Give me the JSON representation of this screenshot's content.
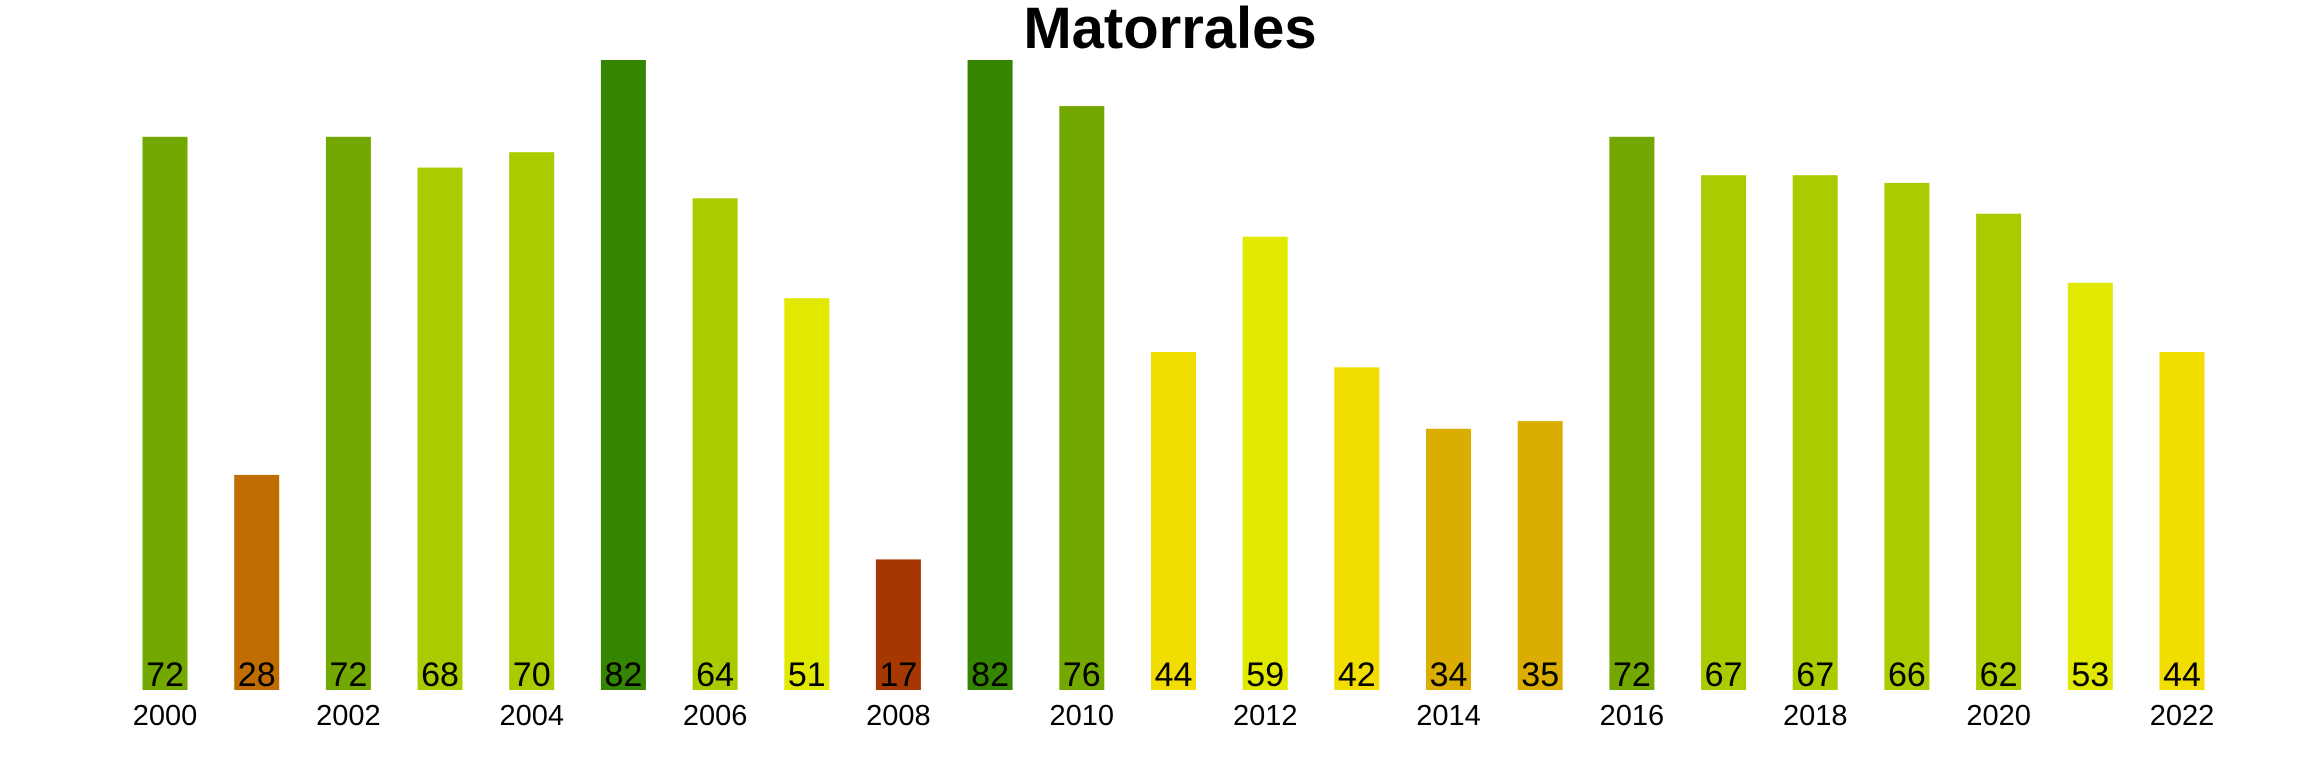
{
  "chart_data": {
    "type": "bar",
    "title": "Matorrales",
    "xlabel": "",
    "ylabel": "",
    "categories": [
      "2000",
      "2001",
      "2002",
      "2003",
      "2004",
      "2005",
      "2006",
      "2007",
      "2008",
      "2009",
      "2010",
      "2011",
      "2012",
      "2013",
      "2014",
      "2015",
      "2016",
      "2017",
      "2018",
      "2019",
      "2020",
      "2021",
      "2022"
    ],
    "values": [
      72,
      28,
      72,
      68,
      70,
      82,
      64,
      51,
      17,
      82,
      76,
      44,
      59,
      42,
      34,
      35,
      72,
      67,
      67,
      66,
      62,
      53,
      44
    ],
    "data_labels": [
      "72",
      "28",
      "72",
      "68",
      "70",
      "82",
      "64",
      "51",
      "17",
      "82",
      "76",
      "44",
      "59",
      "42",
      "34",
      "35",
      "72",
      "67",
      "67",
      "66",
      "62",
      "53",
      "44"
    ],
    "tick_labels": [
      "2000",
      "2002",
      "2004",
      "2006",
      "2008",
      "2010",
      "2012",
      "2014",
      "2016",
      "2018",
      "2020",
      "2022"
    ],
    "colors": [
      "#72a800",
      "#bf6d00",
      "#72a800",
      "#a9cc00",
      "#a9cc00",
      "#358500",
      "#a9cc00",
      "#e1e900",
      "#a53700",
      "#358500",
      "#72a800",
      "#f1de00",
      "#e1e900",
      "#f1de00",
      "#daad00",
      "#daad00",
      "#72a800",
      "#a9cc00",
      "#a9cc00",
      "#a9cc00",
      "#a9cc00",
      "#e1e900",
      "#f1de00"
    ],
    "ylim": [
      0,
      82
    ],
    "grid": false,
    "legend": "none"
  }
}
